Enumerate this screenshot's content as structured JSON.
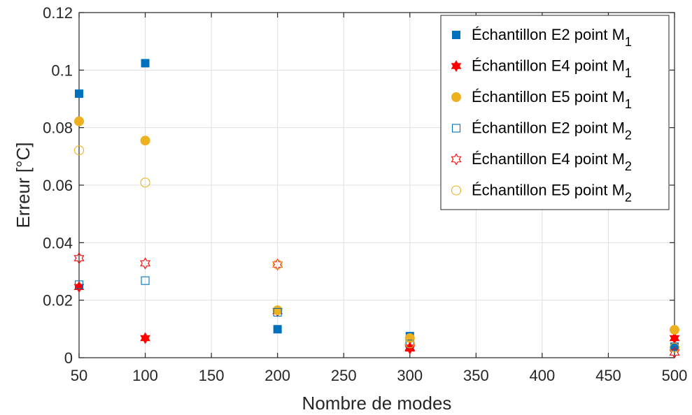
{
  "chart_data": {
    "type": "scatter",
    "title": "",
    "xlabel": "Nombre de modes",
    "ylabel": "Erreur [°C]",
    "xlim": [
      50,
      500
    ],
    "ylim": [
      0,
      0.12
    ],
    "xticks": [
      50,
      100,
      150,
      200,
      250,
      300,
      350,
      400,
      450,
      500
    ],
    "xtick_labels": [
      "50",
      "100",
      "150",
      "200",
      "250",
      "300",
      "350",
      "400",
      "450",
      "500"
    ],
    "yticks": [
      0,
      0.02,
      0.04,
      0.06,
      0.08,
      0.1,
      0.12
    ],
    "ytick_labels": [
      "0",
      "0.02",
      "0.04",
      "0.06",
      "0.08",
      "0.1",
      "0.12"
    ],
    "grid": true,
    "legend_position": "top-right",
    "series": [
      {
        "name": "Échantillon E2 point M",
        "subscript": "1",
        "marker": "square",
        "filled": true,
        "color": "#0072BD",
        "x": [
          50,
          100,
          200,
          300,
          500
        ],
        "y": [
          0.0918,
          0.1024,
          0.0099,
          0.0075,
          0.0038
        ]
      },
      {
        "name": "Échantillon E4 point M",
        "subscript": "1",
        "marker": "hexagram",
        "filled": true,
        "color": "#FF0000",
        "x": [
          50,
          100,
          200,
          300,
          500
        ],
        "y": [
          0.0246,
          0.0068,
          0.0162,
          0.0032,
          0.0068
        ]
      },
      {
        "name": "Échantillon E5 point M",
        "subscript": "1",
        "marker": "circle",
        "filled": true,
        "color": "#EDB120",
        "x": [
          50,
          100,
          200,
          300,
          500
        ],
        "y": [
          0.0822,
          0.0755,
          0.0165,
          0.0068,
          0.0097
        ]
      },
      {
        "name": "Échantillon E2 point M",
        "subscript": "2",
        "marker": "square",
        "filled": false,
        "color": "#0072BD",
        "x": [
          50,
          100,
          200,
          300,
          500
        ],
        "y": [
          0.0254,
          0.0268,
          0.0158,
          0.0048,
          0.0038
        ]
      },
      {
        "name": "Échantillon E4 point M",
        "subscript": "2",
        "marker": "hexagram",
        "filled": false,
        "color": "#FF0000",
        "x": [
          50,
          100,
          200,
          300,
          500
        ],
        "y": [
          0.0346,
          0.0328,
          0.0324,
          0.0035,
          0.0018
        ]
      },
      {
        "name": "Échantillon E5 point M",
        "subscript": "2",
        "marker": "circle",
        "filled": false,
        "color": "#EDB120",
        "x": [
          50,
          100,
          200,
          300,
          500
        ],
        "y": [
          0.0721,
          0.0609,
          0.0324,
          0.005,
          0.0035
        ]
      }
    ]
  }
}
